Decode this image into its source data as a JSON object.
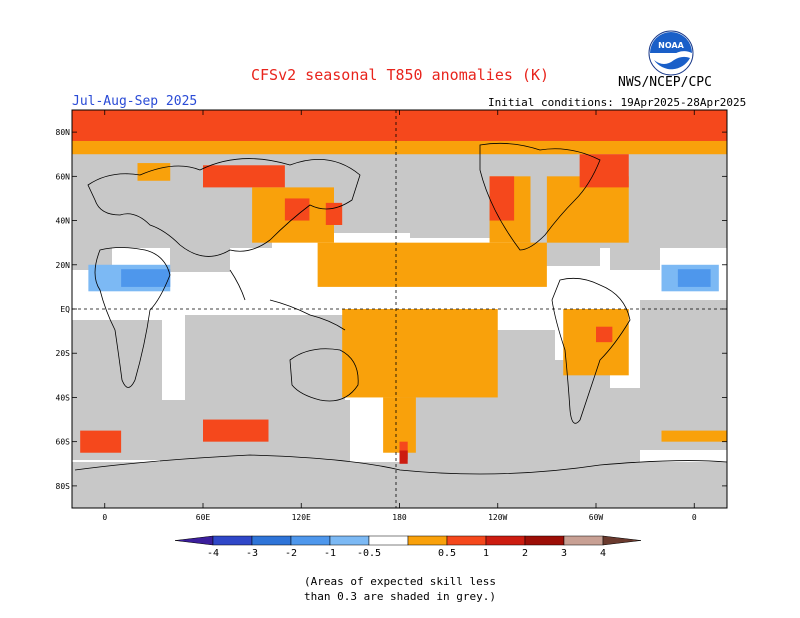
{
  "header": {
    "title": "CFSv2 seasonal T850 anomalies (K)",
    "agency": "NWS/NCEP/CPC",
    "season": "Jul-Aug-Sep 2025",
    "initial_conditions": "Initial conditions: 19Apr2025-28Apr2025",
    "logo_text": "NOAA"
  },
  "map": {
    "lat_labels": [
      "80N",
      "60N",
      "40N",
      "20N",
      "EQ",
      "20S",
      "40S",
      "60S",
      "80S"
    ],
    "lat_values": [
      80,
      60,
      40,
      20,
      0,
      -20,
      -40,
      -60,
      -80
    ],
    "lon_labels": [
      "0",
      "60E",
      "120E",
      "180",
      "120W",
      "60W",
      "0"
    ],
    "lon_values": [
      0,
      60,
      120,
      180,
      240,
      300,
      360
    ],
    "lon_range": [
      -20,
      380
    ],
    "lat_range": [
      -90,
      90
    ],
    "dashed_reference_lines": [
      "EQ",
      "180"
    ],
    "skill_mask_color": "#c8c8c8",
    "regions": [
      {
        "level": 0.5,
        "lon": [
          -20,
          380
        ],
        "lat": [
          70,
          90
        ]
      },
      {
        "level": 1.0,
        "lon": [
          -20,
          380
        ],
        "lat": [
          76,
          90
        ]
      },
      {
        "level": 0.5,
        "lon": [
          20,
          40
        ],
        "lat": [
          58,
          66
        ]
      },
      {
        "level": 1.0,
        "lon": [
          60,
          110
        ],
        "lat": [
          55,
          65
        ]
      },
      {
        "level": 0.5,
        "lon": [
          90,
          140
        ],
        "lat": [
          30,
          55
        ]
      },
      {
        "level": 1.0,
        "lon": [
          110,
          125
        ],
        "lat": [
          40,
          50
        ]
      },
      {
        "level": 1.0,
        "lon": [
          135,
          145
        ],
        "lat": [
          38,
          48
        ]
      },
      {
        "level": 0.5,
        "lon": [
          130,
          270
        ],
        "lat": [
          10,
          30
        ]
      },
      {
        "level": 0.5,
        "lon": [
          145,
          240
        ],
        "lat": [
          -40,
          0
        ]
      },
      {
        "level": 0.5,
        "lon": [
          170,
          190
        ],
        "lat": [
          -65,
          -40
        ]
      },
      {
        "level": 1.0,
        "lon": [
          180,
          185
        ],
        "lat": [
          -68,
          -60
        ]
      },
      {
        "level": 2.0,
        "lon": [
          180,
          185
        ],
        "lat": [
          -70,
          -64
        ]
      },
      {
        "level": 0.5,
        "lon": [
          235,
          260
        ],
        "lat": [
          30,
          60
        ]
      },
      {
        "level": 1.0,
        "lon": [
          235,
          250
        ],
        "lat": [
          40,
          60
        ]
      },
      {
        "level": 0.5,
        "lon": [
          270,
          320
        ],
        "lat": [
          30,
          60
        ]
      },
      {
        "level": 1.0,
        "lon": [
          290,
          320
        ],
        "lat": [
          55,
          70
        ]
      },
      {
        "level": 0.5,
        "lon": [
          280,
          320
        ],
        "lat": [
          -30,
          0
        ]
      },
      {
        "level": 1.0,
        "lon": [
          300,
          310
        ],
        "lat": [
          -15,
          -8
        ]
      },
      {
        "level": 1.0,
        "lon": [
          60,
          100
        ],
        "lat": [
          -60,
          -50
        ]
      },
      {
        "level": 1.0,
        "lon": [
          -15,
          10
        ],
        "lat": [
          -65,
          -55
        ]
      },
      {
        "level": 0.5,
        "lon": [
          340,
          380
        ],
        "lat": [
          -60,
          -55
        ]
      },
      {
        "level": -0.5,
        "lon": [
          -10,
          40
        ],
        "lat": [
          8,
          20
        ]
      },
      {
        "level": -1.0,
        "lon": [
          10,
          40
        ],
        "lat": [
          10,
          18
        ]
      },
      {
        "level": -0.5,
        "lon": [
          340,
          375
        ],
        "lat": [
          8,
          20
        ]
      },
      {
        "level": -1.0,
        "lon": [
          350,
          370
        ],
        "lat": [
          10,
          18
        ]
      }
    ]
  },
  "colorbar": {
    "labels": [
      "-4",
      "-3",
      "-2",
      "-1",
      "-0.5",
      "0.5",
      "1",
      "2",
      "3",
      "4"
    ],
    "colors": [
      "#3b1e9c",
      "#2f47c8",
      "#2e74d8",
      "#4e97ec",
      "#7cb9f4",
      "#ffffff",
      "#f9a10b",
      "#f5481c",
      "#cc1c10",
      "#9c0e06",
      "#c8a094",
      "#6a3a2e"
    ]
  },
  "footnote": {
    "line1": "(Areas of expected skill less",
    "line2": "than 0.3 are shaded in grey.)"
  }
}
